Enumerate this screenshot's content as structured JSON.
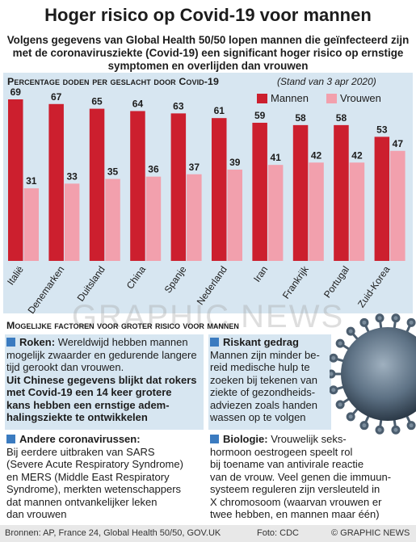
{
  "header": {
    "title": "Hoger risico op Covid-19 voor mannen",
    "subtitle_lines": [
      "Volgens gegevens van Global Health 50/50 lopen mannen die geïnfecteerd zijn",
      "met de coronavirusziekte (Covid-19) een significant hoger risico op ernstige",
      "symptomen en overlijden dan vrouwen"
    ]
  },
  "chart_data": {
    "type": "bar",
    "title": "Percentage doden per geslacht door Covid-19",
    "date_note": "(Stand van 3 apr 2020)",
    "categories": [
      "Italië",
      "Denemarken",
      "Duitsland",
      "China",
      "Spanje",
      "Nederland",
      "Iran",
      "Frankrijk",
      "Portugal",
      "Zuid-Korea"
    ],
    "series": [
      {
        "name": "Mannen",
        "color": "#cc1f2e",
        "values": [
          69,
          67,
          65,
          64,
          63,
          61,
          59,
          58,
          58,
          53
        ]
      },
      {
        "name": "Vrouwen",
        "color": "#f2a0ad",
        "values": [
          31,
          33,
          35,
          36,
          37,
          39,
          41,
          42,
          42,
          47
        ]
      }
    ],
    "ylim": [
      0,
      69
    ],
    "legend_position": "top-right",
    "grid": false
  },
  "watermark": "GRAPHIC NEWS",
  "factors": {
    "title": "Mogelijke factoren voor groter risico voor mannen",
    "roken": {
      "head": "Roken:",
      "lines": [
        "Wereldwijd hebben mannen",
        "mogelijk zwaarder en gedurende langere",
        "tijd gerookt dan vrouwen."
      ],
      "bold_lines": [
        "Uit Chinese gegevens blijkt dat rokers",
        "met Covid-19 een 14 keer grotere",
        "kans hebben een ernstige adem-",
        "halingsziekte te ontwikkelen"
      ]
    },
    "andere": {
      "head": "Andere coronavirussen:",
      "lines": [
        "Bij eerdere uitbraken van SARS",
        "(Severe Acute Respiratory Syndrome)",
        "en MERS (Middle East Respiratory",
        "Syndrome), merkten wetenschappers",
        "dat mannen ontvankelijker leken",
        "dan vrouwen"
      ]
    },
    "riskant": {
      "head": "Riskant gedrag",
      "lines": [
        "Mannen zijn minder be-",
        "reid medische hulp te",
        "zoeken bij tekenen van",
        "ziekte of gezondheids-",
        "adviezen zoals handen",
        "wassen op te volgen"
      ]
    },
    "biologie": {
      "head": "Biologie:",
      "first_line": "Vrouwelijk seks-",
      "lines": [
        "hormoon oestrogeen speelt rol",
        "bij toename van antivirale reactie",
        "van de vrouw.  Veel genen die immuun-",
        "systeem reguleren zijn versleuteld in",
        "X chromosoom (waarvan vrouwen er",
        "twee hebben, en mannen maar één)"
      ]
    }
  },
  "footer": {
    "sources": "Bronnen: AP, France 24, Global Health 50/50, GOV.UK",
    "photo": "Foto: CDC",
    "credit": "© GRAPHIC NEWS"
  },
  "colors": {
    "accent_blue": "#3b7bc0",
    "panel": "#d7e6f1",
    "male": "#cc1f2e",
    "female": "#f2a0ad"
  }
}
